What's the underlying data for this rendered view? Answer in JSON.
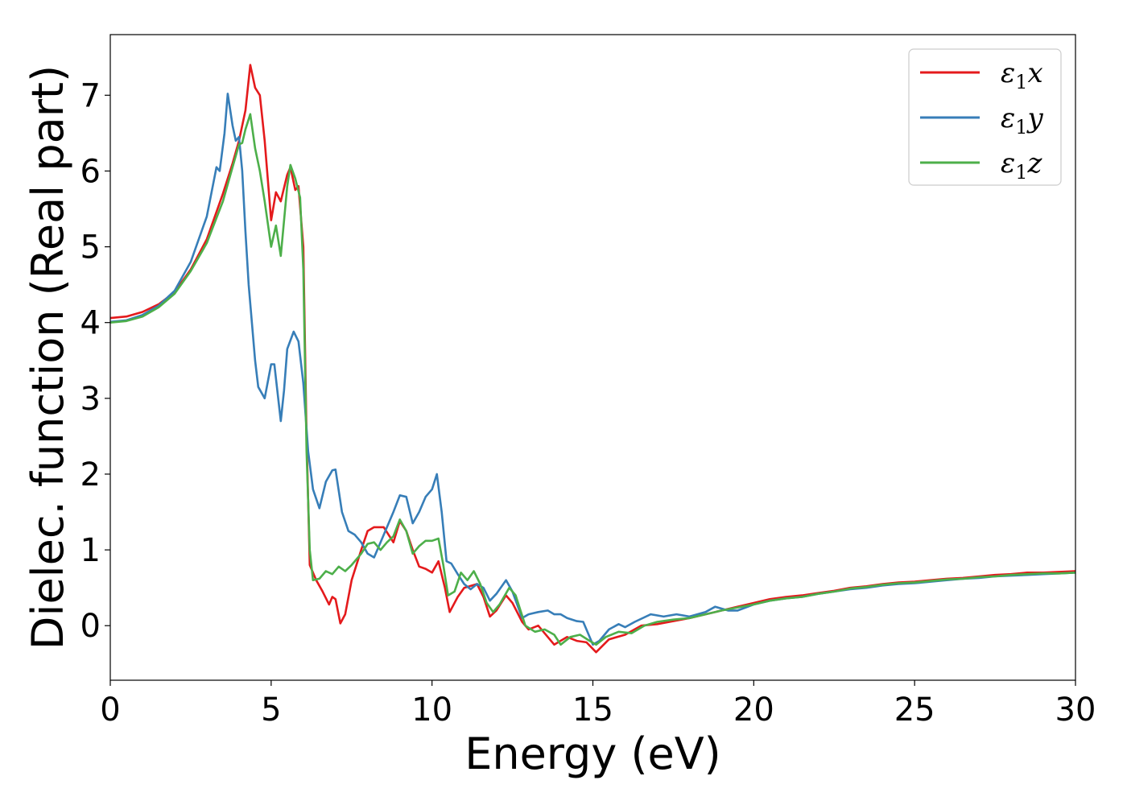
{
  "chart_data": {
    "type": "line",
    "xlabel": "Energy (eV)",
    "ylabel": "Dielec. function (Real part)",
    "xlim": [
      0,
      30
    ],
    "ylim": [
      -0.72,
      7.8
    ],
    "xticks": [
      0,
      5,
      10,
      15,
      20,
      25,
      30
    ],
    "yticks": [
      0,
      1,
      2,
      3,
      4,
      5,
      6,
      7
    ],
    "grid": false,
    "legend_position": "top-right",
    "series": [
      {
        "name": "ε1x",
        "legend_main": "ε",
        "legend_sub": "1",
        "legend_var": "x",
        "color": "#e41a1c",
        "points": [
          [
            0,
            4.06
          ],
          [
            0.5,
            4.08
          ],
          [
            1,
            4.14
          ],
          [
            1.5,
            4.24
          ],
          [
            2,
            4.4
          ],
          [
            2.5,
            4.7
          ],
          [
            3,
            5.1
          ],
          [
            3.5,
            5.7
          ],
          [
            3.8,
            6.1
          ],
          [
            4.0,
            6.4
          ],
          [
            4.2,
            6.8
          ],
          [
            4.35,
            7.4
          ],
          [
            4.5,
            7.1
          ],
          [
            4.65,
            7.0
          ],
          [
            4.8,
            6.4
          ],
          [
            5.0,
            5.35
          ],
          [
            5.15,
            5.72
          ],
          [
            5.3,
            5.6
          ],
          [
            5.5,
            5.95
          ],
          [
            5.6,
            6.05
          ],
          [
            5.75,
            5.75
          ],
          [
            5.85,
            5.8
          ],
          [
            6.0,
            5.0
          ],
          [
            6.1,
            2.5
          ],
          [
            6.2,
            0.8
          ],
          [
            6.4,
            0.6
          ],
          [
            6.6,
            0.45
          ],
          [
            6.8,
            0.28
          ],
          [
            6.9,
            0.38
          ],
          [
            7.0,
            0.35
          ],
          [
            7.15,
            0.03
          ],
          [
            7.3,
            0.15
          ],
          [
            7.5,
            0.6
          ],
          [
            7.8,
            1.0
          ],
          [
            8.0,
            1.25
          ],
          [
            8.2,
            1.3
          ],
          [
            8.5,
            1.3
          ],
          [
            8.8,
            1.1
          ],
          [
            9.0,
            1.38
          ],
          [
            9.2,
            1.25
          ],
          [
            9.4,
            1.0
          ],
          [
            9.6,
            0.78
          ],
          [
            9.8,
            0.75
          ],
          [
            10.0,
            0.7
          ],
          [
            10.2,
            0.85
          ],
          [
            10.4,
            0.5
          ],
          [
            10.55,
            0.18
          ],
          [
            10.8,
            0.38
          ],
          [
            11.0,
            0.5
          ],
          [
            11.4,
            0.55
          ],
          [
            11.6,
            0.38
          ],
          [
            11.8,
            0.12
          ],
          [
            12.0,
            0.2
          ],
          [
            12.3,
            0.4
          ],
          [
            12.5,
            0.3
          ],
          [
            12.8,
            0.05
          ],
          [
            13.0,
            -0.05
          ],
          [
            13.3,
            0.0
          ],
          [
            13.6,
            -0.15
          ],
          [
            13.8,
            -0.25
          ],
          [
            14.2,
            -0.15
          ],
          [
            14.5,
            -0.2
          ],
          [
            14.8,
            -0.22
          ],
          [
            15.1,
            -0.35
          ],
          [
            15.5,
            -0.18
          ],
          [
            16.0,
            -0.12
          ],
          [
            16.5,
            0.0
          ],
          [
            17.0,
            0.02
          ],
          [
            17.5,
            0.06
          ],
          [
            18.0,
            0.1
          ],
          [
            18.5,
            0.15
          ],
          [
            19.0,
            0.2
          ],
          [
            19.5,
            0.25
          ],
          [
            20.0,
            0.3
          ],
          [
            20.5,
            0.35
          ],
          [
            21.0,
            0.38
          ],
          [
            21.5,
            0.4
          ],
          [
            22.0,
            0.43
          ],
          [
            22.5,
            0.46
          ],
          [
            23.0,
            0.5
          ],
          [
            23.5,
            0.52
          ],
          [
            24.0,
            0.55
          ],
          [
            24.5,
            0.57
          ],
          [
            25.0,
            0.58
          ],
          [
            25.5,
            0.6
          ],
          [
            26.0,
            0.62
          ],
          [
            26.5,
            0.63
          ],
          [
            27.0,
            0.65
          ],
          [
            27.5,
            0.67
          ],
          [
            28.0,
            0.68
          ],
          [
            28.5,
            0.7
          ],
          [
            29.0,
            0.7
          ],
          [
            29.5,
            0.71
          ],
          [
            30.0,
            0.72
          ]
        ]
      },
      {
        "name": "ε1y",
        "legend_main": "ε",
        "legend_sub": "1",
        "legend_var": "y",
        "color": "#377eb8",
        "points": [
          [
            0,
            4.01
          ],
          [
            0.5,
            4.03
          ],
          [
            1,
            4.1
          ],
          [
            1.5,
            4.22
          ],
          [
            2,
            4.42
          ],
          [
            2.5,
            4.8
          ],
          [
            3,
            5.4
          ],
          [
            3.3,
            6.05
          ],
          [
            3.4,
            6.0
          ],
          [
            3.55,
            6.5
          ],
          [
            3.65,
            7.02
          ],
          [
            3.8,
            6.6
          ],
          [
            3.9,
            6.4
          ],
          [
            4.0,
            6.45
          ],
          [
            4.1,
            6.0
          ],
          [
            4.2,
            5.2
          ],
          [
            4.3,
            4.5
          ],
          [
            4.5,
            3.5
          ],
          [
            4.6,
            3.15
          ],
          [
            4.8,
            3.0
          ],
          [
            5.0,
            3.45
          ],
          [
            5.1,
            3.45
          ],
          [
            5.3,
            2.7
          ],
          [
            5.4,
            3.1
          ],
          [
            5.5,
            3.65
          ],
          [
            5.7,
            3.88
          ],
          [
            5.85,
            3.75
          ],
          [
            6.0,
            3.2
          ],
          [
            6.15,
            2.3
          ],
          [
            6.3,
            1.8
          ],
          [
            6.5,
            1.55
          ],
          [
            6.7,
            1.9
          ],
          [
            6.9,
            2.05
          ],
          [
            7.0,
            2.06
          ],
          [
            7.2,
            1.5
          ],
          [
            7.4,
            1.25
          ],
          [
            7.6,
            1.2
          ],
          [
            7.8,
            1.1
          ],
          [
            8.0,
            0.95
          ],
          [
            8.2,
            0.9
          ],
          [
            8.4,
            1.1
          ],
          [
            8.6,
            1.3
          ],
          [
            8.8,
            1.5
          ],
          [
            9.0,
            1.72
          ],
          [
            9.2,
            1.7
          ],
          [
            9.4,
            1.35
          ],
          [
            9.6,
            1.5
          ],
          [
            9.8,
            1.7
          ],
          [
            10.0,
            1.8
          ],
          [
            10.15,
            2.0
          ],
          [
            10.3,
            1.5
          ],
          [
            10.45,
            0.85
          ],
          [
            10.6,
            0.82
          ],
          [
            10.8,
            0.68
          ],
          [
            11.0,
            0.55
          ],
          [
            11.2,
            0.48
          ],
          [
            11.4,
            0.55
          ],
          [
            11.6,
            0.5
          ],
          [
            11.8,
            0.33
          ],
          [
            12.0,
            0.42
          ],
          [
            12.3,
            0.6
          ],
          [
            12.5,
            0.45
          ],
          [
            12.8,
            0.1
          ],
          [
            13.0,
            0.15
          ],
          [
            13.3,
            0.18
          ],
          [
            13.6,
            0.2
          ],
          [
            13.8,
            0.15
          ],
          [
            14.0,
            0.15
          ],
          [
            14.2,
            0.1
          ],
          [
            14.5,
            0.06
          ],
          [
            14.7,
            0.05
          ],
          [
            15.0,
            -0.25
          ],
          [
            15.2,
            -0.2
          ],
          [
            15.5,
            -0.05
          ],
          [
            15.8,
            0.02
          ],
          [
            16.0,
            -0.02
          ],
          [
            16.3,
            0.05
          ],
          [
            16.8,
            0.15
          ],
          [
            17.2,
            0.12
          ],
          [
            17.6,
            0.15
          ],
          [
            18.0,
            0.12
          ],
          [
            18.5,
            0.18
          ],
          [
            18.8,
            0.25
          ],
          [
            19.2,
            0.2
          ],
          [
            19.5,
            0.2
          ],
          [
            20.0,
            0.28
          ],
          [
            20.5,
            0.33
          ],
          [
            21.0,
            0.36
          ],
          [
            21.5,
            0.38
          ],
          [
            22.0,
            0.42
          ],
          [
            22.5,
            0.45
          ],
          [
            23.0,
            0.48
          ],
          [
            23.5,
            0.5
          ],
          [
            24.0,
            0.53
          ],
          [
            24.5,
            0.55
          ],
          [
            25.0,
            0.56
          ],
          [
            25.5,
            0.58
          ],
          [
            26.0,
            0.6
          ],
          [
            26.5,
            0.62
          ],
          [
            27.0,
            0.63
          ],
          [
            27.5,
            0.65
          ],
          [
            28.0,
            0.66
          ],
          [
            28.5,
            0.67
          ],
          [
            29.0,
            0.68
          ],
          [
            29.5,
            0.69
          ],
          [
            30.0,
            0.7
          ]
        ]
      },
      {
        "name": "ε1z",
        "legend_main": "ε",
        "legend_sub": "1",
        "legend_var": "z",
        "color": "#4daf4a",
        "points": [
          [
            0,
            4.0
          ],
          [
            0.5,
            4.02
          ],
          [
            1,
            4.08
          ],
          [
            1.5,
            4.2
          ],
          [
            2,
            4.38
          ],
          [
            2.5,
            4.68
          ],
          [
            3,
            5.05
          ],
          [
            3.5,
            5.6
          ],
          [
            3.8,
            6.05
          ],
          [
            4.0,
            6.35
          ],
          [
            4.1,
            6.37
          ],
          [
            4.2,
            6.55
          ],
          [
            4.35,
            6.75
          ],
          [
            4.5,
            6.3
          ],
          [
            4.65,
            6.0
          ],
          [
            4.8,
            5.6
          ],
          [
            5.0,
            5.0
          ],
          [
            5.15,
            5.28
          ],
          [
            5.3,
            4.88
          ],
          [
            5.5,
            5.8
          ],
          [
            5.6,
            6.08
          ],
          [
            5.75,
            5.9
          ],
          [
            5.9,
            5.65
          ],
          [
            6.0,
            4.7
          ],
          [
            6.1,
            2.3
          ],
          [
            6.2,
            1.0
          ],
          [
            6.3,
            0.6
          ],
          [
            6.5,
            0.62
          ],
          [
            6.7,
            0.72
          ],
          [
            6.9,
            0.68
          ],
          [
            7.1,
            0.78
          ],
          [
            7.3,
            0.72
          ],
          [
            7.5,
            0.8
          ],
          [
            7.8,
            0.95
          ],
          [
            8.0,
            1.08
          ],
          [
            8.2,
            1.1
          ],
          [
            8.4,
            1.0
          ],
          [
            8.6,
            1.1
          ],
          [
            8.8,
            1.18
          ],
          [
            9.0,
            1.4
          ],
          [
            9.2,
            1.25
          ],
          [
            9.4,
            0.95
          ],
          [
            9.6,
            1.05
          ],
          [
            9.8,
            1.12
          ],
          [
            10.0,
            1.12
          ],
          [
            10.2,
            1.15
          ],
          [
            10.35,
            0.8
          ],
          [
            10.5,
            0.4
          ],
          [
            10.7,
            0.45
          ],
          [
            10.9,
            0.7
          ],
          [
            11.1,
            0.6
          ],
          [
            11.3,
            0.72
          ],
          [
            11.5,
            0.55
          ],
          [
            11.7,
            0.3
          ],
          [
            11.9,
            0.18
          ],
          [
            12.1,
            0.28
          ],
          [
            12.4,
            0.5
          ],
          [
            12.6,
            0.4
          ],
          [
            12.9,
            0.0
          ],
          [
            13.2,
            -0.08
          ],
          [
            13.5,
            -0.05
          ],
          [
            13.8,
            -0.12
          ],
          [
            14.0,
            -0.25
          ],
          [
            14.3,
            -0.15
          ],
          [
            14.6,
            -0.12
          ],
          [
            14.9,
            -0.2
          ],
          [
            15.1,
            -0.25
          ],
          [
            15.4,
            -0.15
          ],
          [
            15.8,
            -0.08
          ],
          [
            16.2,
            -0.1
          ],
          [
            16.6,
            0.0
          ],
          [
            17.0,
            0.05
          ],
          [
            17.5,
            0.08
          ],
          [
            18.0,
            0.1
          ],
          [
            18.5,
            0.15
          ],
          [
            19.0,
            0.2
          ],
          [
            19.5,
            0.24
          ],
          [
            20.0,
            0.28
          ],
          [
            20.5,
            0.33
          ],
          [
            21.0,
            0.36
          ],
          [
            21.5,
            0.38
          ],
          [
            22.0,
            0.42
          ],
          [
            22.5,
            0.45
          ],
          [
            23.0,
            0.49
          ],
          [
            23.5,
            0.51
          ],
          [
            24.0,
            0.54
          ],
          [
            24.5,
            0.56
          ],
          [
            25.0,
            0.57
          ],
          [
            25.5,
            0.59
          ],
          [
            26.0,
            0.61
          ],
          [
            26.5,
            0.62
          ],
          [
            27.0,
            0.64
          ],
          [
            27.5,
            0.65
          ],
          [
            28.0,
            0.67
          ],
          [
            28.5,
            0.68
          ],
          [
            29.0,
            0.69
          ],
          [
            29.5,
            0.69
          ],
          [
            30.0,
            0.7
          ]
        ]
      }
    ]
  }
}
